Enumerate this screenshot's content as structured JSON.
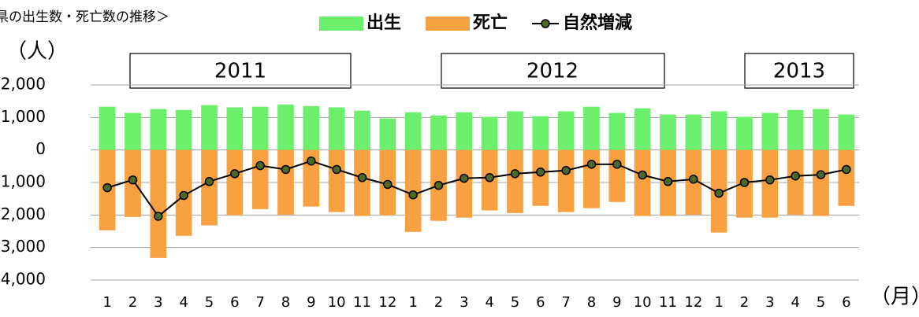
{
  "chart_data": {
    "type": "bar",
    "title": "県の出生数・死亡数の推移＞",
    "y_label": "（人）",
    "x_label": "（月）",
    "annotations": [
      "2011",
      "2012",
      "2013"
    ],
    "categories": [
      "1",
      "2",
      "3",
      "4",
      "5",
      "6",
      "7",
      "8",
      "9",
      "10",
      "11",
      "12",
      "1",
      "2",
      "3",
      "4",
      "5",
      "6",
      "7",
      "8",
      "9",
      "10",
      "11",
      "12",
      "1",
      "2",
      "3",
      "4",
      "5",
      "6"
    ],
    "series": [
      {
        "name": "出生",
        "color": "#6cf06c",
        "values": [
          1330,
          1140,
          1260,
          1230,
          1380,
          1310,
          1330,
          1400,
          1350,
          1310,
          1210,
          970,
          1160,
          1060,
          1160,
          1020,
          1190,
          1040,
          1190,
          1330,
          1140,
          1280,
          1090,
          1090,
          1190,
          1020,
          1140,
          1230,
          1260,
          1090
        ]
      },
      {
        "name": "死亡",
        "color": "#f9a040",
        "values": [
          -2470,
          -2060,
          -3320,
          -2640,
          -2320,
          -2010,
          -1820,
          -1990,
          -1740,
          -1910,
          -2030,
          -2010,
          -2520,
          -2180,
          -2080,
          -1860,
          -1940,
          -1720,
          -1910,
          -1790,
          -1600,
          -2030,
          -2030,
          -1990,
          -2540,
          -2080,
          -2080,
          -1990,
          -2030,
          -1720
        ]
      },
      {
        "name": "自然増減",
        "color": "#000000",
        "marker_color": "#4a6a2a",
        "line": true,
        "values": [
          -1160,
          -920,
          -2040,
          -1400,
          -970,
          -730,
          -480,
          -600,
          -340,
          -600,
          -850,
          -1060,
          -1380,
          -1090,
          -870,
          -850,
          -730,
          -680,
          -630,
          -440,
          -440,
          -770,
          -970,
          -900,
          -1330,
          -1000,
          -920,
          -800,
          -760,
          -600
        ]
      }
    ],
    "ylim": [
      -4000,
      2000
    ],
    "yticks": [
      {
        "value": 2000,
        "label": "2,000"
      },
      {
        "value": 1000,
        "label": "1,000"
      },
      0,
      {
        "value": -1000,
        "label": "-1,000"
      },
      {
        "value": -2000,
        "label": "-2,000"
      },
      {
        "value": -3000,
        "label": "-3,000"
      },
      {
        "value": -4000,
        "label": "-4,000"
      }
    ],
    "grid": true
  }
}
